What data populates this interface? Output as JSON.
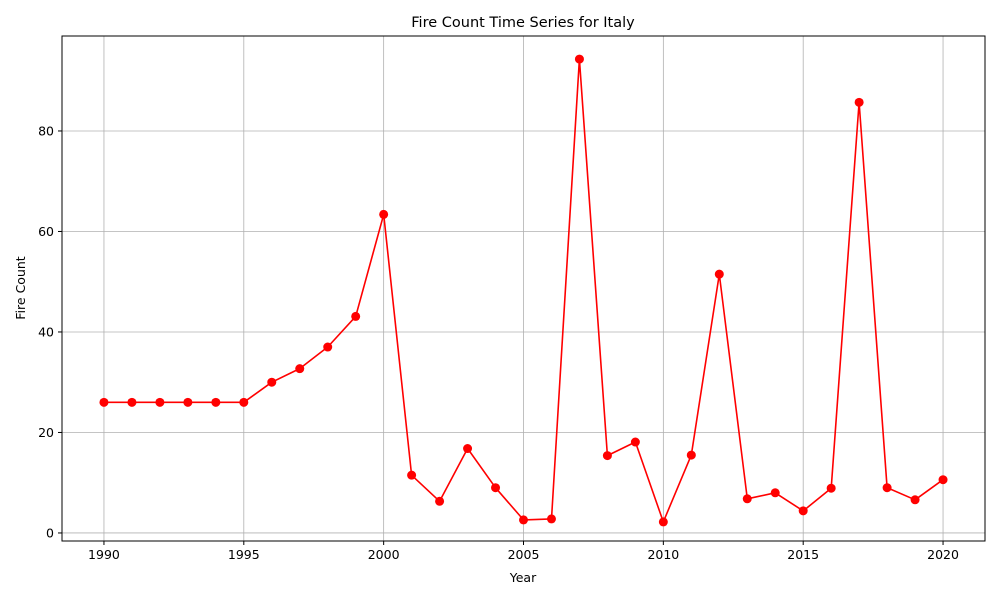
{
  "chart_data": {
    "type": "line",
    "title": "Fire Count Time Series for Italy",
    "xlabel": "Year",
    "ylabel": "Fire Count",
    "xlim": [
      1988.5,
      2021.5
    ],
    "ylim": [
      -1.6,
      98.9
    ],
    "xticks": [
      1990,
      1995,
      2000,
      2005,
      2010,
      2015,
      2020
    ],
    "yticks": [
      0,
      20,
      40,
      60,
      80
    ],
    "grid": true,
    "line_color": "#ff0000",
    "series": [
      {
        "x": [
          1990,
          1991,
          1992,
          1993,
          1994,
          1995,
          1996,
          1997,
          1998,
          1999,
          2000,
          2001,
          2002,
          2003,
          2004,
          2005,
          2006,
          2007,
          2008,
          2009,
          2010,
          2011,
          2012,
          2013,
          2014,
          2015,
          2016,
          2017,
          2018,
          2019,
          2020
        ],
        "values": [
          26.0,
          26.0,
          26.0,
          26.0,
          26.0,
          26.0,
          30.0,
          32.7,
          37.0,
          43.1,
          63.4,
          11.5,
          6.3,
          16.8,
          9.0,
          2.6,
          2.8,
          94.3,
          15.4,
          18.1,
          2.2,
          15.5,
          51.5,
          6.8,
          8.0,
          4.4,
          8.9,
          85.7,
          9.0,
          6.6,
          10.6
        ]
      }
    ]
  }
}
